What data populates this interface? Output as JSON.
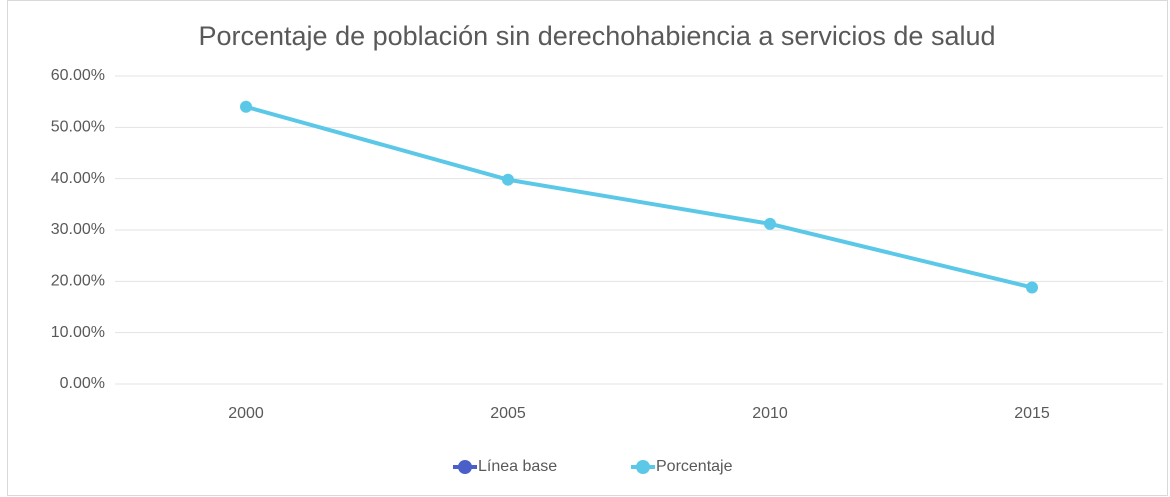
{
  "chart_data": {
    "type": "line",
    "title": "Porcentaje de población sin derechohabiencia a servicios de salud",
    "categories": [
      "2000",
      "2005",
      "2010",
      "2015"
    ],
    "series": [
      {
        "name": "Línea base",
        "color": "#4a5fc8",
        "values": [
          null,
          null,
          null,
          null
        ]
      },
      {
        "name": "Porcentaje",
        "color": "#5bc8e8",
        "values": [
          54.0,
          39.8,
          31.2,
          18.8
        ]
      }
    ],
    "ylim": [
      0,
      60
    ],
    "yticks": [
      {
        "value": 0,
        "label": "0.00%"
      },
      {
        "value": 10,
        "label": "10.00%"
      },
      {
        "value": 20,
        "label": "20.00%"
      },
      {
        "value": 30,
        "label": "30.00%"
      },
      {
        "value": 40,
        "label": "40.00%"
      },
      {
        "value": 50,
        "label": "50.00%"
      },
      {
        "value": 60,
        "label": "60.00%"
      }
    ],
    "grid": true,
    "legend": "bottom"
  }
}
